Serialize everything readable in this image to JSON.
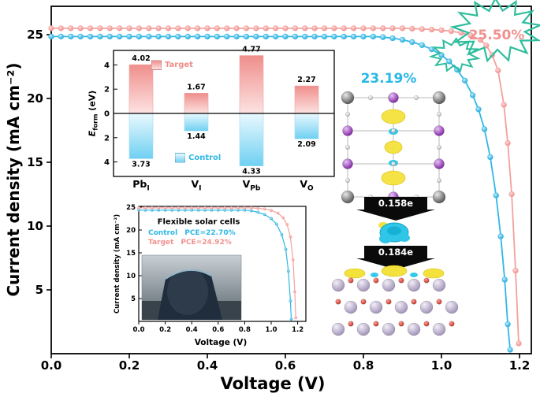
{
  "annotations": {
    "target_pce": "25.50%",
    "control_pce": "23.19%"
  },
  "charge_transfer": {
    "top": "0.158e",
    "bottom": "0.184e"
  },
  "chart_data": [
    {
      "id": "main_jv",
      "type": "line",
      "xlabel": "Voltage (V)",
      "ylabel": "Current density (mA cm⁻²)",
      "xlim": [
        0,
        1.23
      ],
      "ylim": [
        0,
        27.2
      ],
      "xticks": [
        0.0,
        0.2,
        0.4,
        0.6,
        0.8,
        1.0,
        1.2
      ],
      "yticks": [
        5,
        10,
        15,
        20,
        25
      ],
      "series": [
        {
          "name": "Target",
          "color": "#f2a19e",
          "x": [
            0,
            0.025,
            0.05,
            0.075,
            0.1,
            0.125,
            0.15,
            0.175,
            0.2,
            0.225,
            0.25,
            0.275,
            0.3,
            0.325,
            0.35,
            0.375,
            0.4,
            0.425,
            0.45,
            0.475,
            0.5,
            0.525,
            0.55,
            0.575,
            0.6,
            0.625,
            0.65,
            0.675,
            0.7,
            0.725,
            0.75,
            0.775,
            0.8,
            0.825,
            0.85,
            0.875,
            0.9,
            0.925,
            0.95,
            0.975,
            1.0,
            1.025,
            1.05,
            1.075,
            1.1,
            1.115,
            1.13,
            1.145,
            1.16,
            1.17,
            1.18,
            1.19,
            1.198
          ],
          "y": [
            25.5,
            25.5,
            25.5,
            25.5,
            25.5,
            25.5,
            25.5,
            25.5,
            25.5,
            25.5,
            25.5,
            25.5,
            25.5,
            25.5,
            25.5,
            25.5,
            25.5,
            25.5,
            25.5,
            25.5,
            25.5,
            25.5,
            25.5,
            25.5,
            25.5,
            25.5,
            25.5,
            25.5,
            25.5,
            25.5,
            25.5,
            25.5,
            25.5,
            25.5,
            25.5,
            25.5,
            25.5,
            25.47,
            25.44,
            25.4,
            25.35,
            25.27,
            25.15,
            24.95,
            24.6,
            24.15,
            23.4,
            22.2,
            19.5,
            16.5,
            12.5,
            6.5,
            0.8
          ]
        },
        {
          "name": "Control",
          "color": "#2fb8e6",
          "x": [
            0,
            0.025,
            0.05,
            0.075,
            0.1,
            0.125,
            0.15,
            0.175,
            0.2,
            0.225,
            0.25,
            0.275,
            0.3,
            0.325,
            0.35,
            0.375,
            0.4,
            0.425,
            0.45,
            0.475,
            0.5,
            0.525,
            0.55,
            0.575,
            0.6,
            0.625,
            0.65,
            0.675,
            0.7,
            0.725,
            0.75,
            0.775,
            0.8,
            0.825,
            0.85,
            0.875,
            0.9,
            0.925,
            0.95,
            0.975,
            1.0,
            1.02,
            1.04,
            1.06,
            1.08,
            1.095,
            1.11,
            1.125,
            1.14,
            1.152,
            1.162,
            1.17,
            1.176
          ],
          "y": [
            24.85,
            24.85,
            24.85,
            24.85,
            24.85,
            24.85,
            24.85,
            24.85,
            24.85,
            24.85,
            24.85,
            24.85,
            24.85,
            24.85,
            24.85,
            24.85,
            24.85,
            24.85,
            24.85,
            24.85,
            24.85,
            24.85,
            24.85,
            24.85,
            24.85,
            24.85,
            24.85,
            24.85,
            24.85,
            24.85,
            24.85,
            24.85,
            24.85,
            24.85,
            24.8,
            24.72,
            24.6,
            24.42,
            24.18,
            23.85,
            23.4,
            22.9,
            22.25,
            21.4,
            20.25,
            19.15,
            17.6,
            15.4,
            12.4,
            9.2,
            5.8,
            2.3,
            0.3
          ]
        }
      ]
    },
    {
      "id": "defect_formation",
      "type": "bar",
      "ylabel_parts": {
        "symbol": "E",
        "sub": "form",
        "unit": " (eV)"
      },
      "categories": [
        {
          "t": "Pb",
          "s": "I"
        },
        {
          "t": "V",
          "s": "I"
        },
        {
          "t": "V",
          "s": "Pb"
        },
        {
          "t": "V",
          "s": "O"
        }
      ],
      "yticks": [
        4,
        2,
        0,
        2,
        4
      ],
      "series": [
        {
          "name": "Target",
          "direction": "up",
          "color": "#f2a19e",
          "values": [
            4.02,
            1.67,
            4.77,
            2.27
          ]
        },
        {
          "name": "Control",
          "direction": "down",
          "color": "#7fd4f0",
          "values": [
            3.73,
            1.44,
            4.33,
            2.09
          ]
        }
      ]
    },
    {
      "id": "flexible_jv",
      "type": "line",
      "title": "Flexible solar cells",
      "xlabel": "Voltage (V)",
      "ylabel": "Current density (mA cm⁻²)",
      "xticks": [
        0.0,
        0.2,
        0.4,
        0.6,
        0.8,
        1.0,
        1.2
      ],
      "yticks": [
        5,
        10,
        15,
        20,
        25
      ],
      "legend": [
        {
          "name": "Control",
          "pce": "PCE=22.70%",
          "color": "#2fb8e6"
        },
        {
          "name": "Target",
          "pce": "PCE=24.92%",
          "color": "#f0918e"
        }
      ],
      "series": [
        {
          "name": "Control",
          "color": "#2fb8e6",
          "x": [
            0,
            0.05,
            0.1,
            0.15,
            0.2,
            0.25,
            0.3,
            0.35,
            0.4,
            0.45,
            0.5,
            0.55,
            0.6,
            0.65,
            0.7,
            0.75,
            0.8,
            0.85,
            0.9,
            0.95,
            1.0,
            1.04,
            1.08,
            1.11,
            1.13,
            1.145,
            1.152
          ],
          "y": [
            24.35,
            24.35,
            24.35,
            24.35,
            24.35,
            24.35,
            24.35,
            24.35,
            24.35,
            24.35,
            24.35,
            24.35,
            24.35,
            24.35,
            24.35,
            24.35,
            24.35,
            24.2,
            23.9,
            23.4,
            22.5,
            21.3,
            19.0,
            15.8,
            11.0,
            4.5,
            0.5
          ]
        },
        {
          "name": "Target",
          "color": "#f2a19e",
          "x": [
            0,
            0.05,
            0.1,
            0.15,
            0.2,
            0.25,
            0.3,
            0.35,
            0.4,
            0.45,
            0.5,
            0.55,
            0.6,
            0.65,
            0.7,
            0.75,
            0.8,
            0.85,
            0.9,
            0.95,
            1.0,
            1.05,
            1.09,
            1.12,
            1.145,
            1.165,
            1.178,
            1.186
          ],
          "y": [
            24.85,
            24.85,
            24.85,
            24.85,
            24.85,
            24.85,
            24.85,
            24.85,
            24.85,
            24.85,
            24.85,
            24.85,
            24.85,
            24.85,
            24.85,
            24.85,
            24.85,
            24.85,
            24.75,
            24.6,
            24.3,
            23.7,
            22.7,
            21.2,
            18.5,
            13.5,
            6.5,
            0.8
          ]
        }
      ]
    }
  ]
}
